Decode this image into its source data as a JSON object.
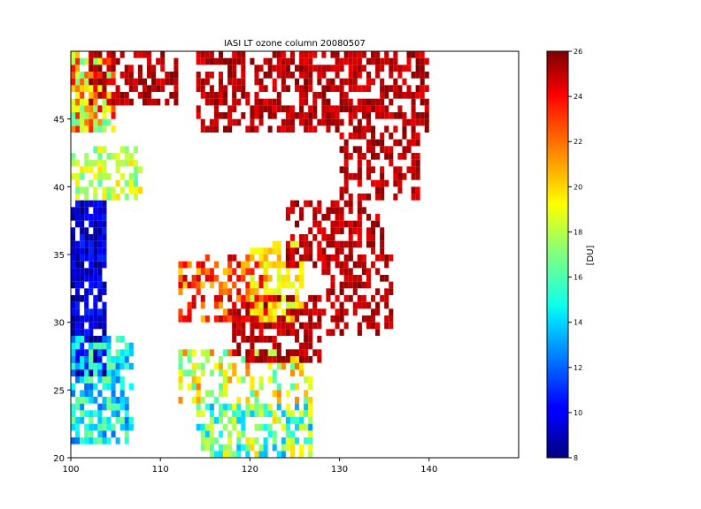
{
  "chart_data": {
    "type": "heatmap",
    "title": "IASI LT ozone column 20080507",
    "xlabel": "",
    "ylabel": "",
    "xlim": [
      100,
      150
    ],
    "ylim": [
      20,
      50
    ],
    "x_ticks": [
      "100",
      "110",
      "120",
      "130",
      "140"
    ],
    "y_ticks": [
      "20",
      "25",
      "30",
      "35",
      "40",
      "45"
    ],
    "colorbar": {
      "label": "[DU]",
      "range": [
        8,
        26
      ],
      "colormap": "jet",
      "ticks": [
        "8",
        "10",
        "12",
        "14",
        "16",
        "18",
        "20",
        "22",
        "24",
        "26"
      ]
    },
    "cell_size_deg": [
      0.5,
      0.5
    ],
    "regions": [
      {
        "lon": [
          100,
          105
        ],
        "lat": [
          44,
          50
        ],
        "value_range": [
          16,
          24
        ],
        "coverage": 0.75,
        "note": "mixed green-yellow-red swaths"
      },
      {
        "lon": [
          102,
          112
        ],
        "lat": [
          46,
          50
        ],
        "value_range": [
          24,
          26
        ],
        "coverage": 0.6
      },
      {
        "lon": [
          114,
          140
        ],
        "lat": [
          44,
          50
        ],
        "value_range": [
          24,
          26
        ],
        "coverage": 0.6
      },
      {
        "lon": [
          100,
          104
        ],
        "lat": [
          26,
          39
        ],
        "value_range": [
          8,
          11
        ],
        "coverage": 0.85
      },
      {
        "lon": [
          100,
          107
        ],
        "lat": [
          21,
          29
        ],
        "value_range": [
          12,
          17
        ],
        "coverage": 0.7
      },
      {
        "lon": [
          114,
          127
        ],
        "lat": [
          20,
          24
        ],
        "value_range": [
          13,
          20
        ],
        "coverage": 0.6
      },
      {
        "lon": [
          112,
          127
        ],
        "lat": [
          24,
          28
        ],
        "value_range": [
          16,
          22
        ],
        "coverage": 0.45
      },
      {
        "lon": [
          118,
          128
        ],
        "lat": [
          27,
          32
        ],
        "value_range": [
          24,
          26
        ],
        "coverage": 0.7
      },
      {
        "lon": [
          112,
          122
        ],
        "lat": [
          30,
          35
        ],
        "value_range": [
          20,
          25
        ],
        "coverage": 0.55
      },
      {
        "lon": [
          120,
          126
        ],
        "lat": [
          30,
          36
        ],
        "value_range": [
          18,
          21
        ],
        "coverage": 0.55
      },
      {
        "lon": [
          124,
          135
        ],
        "lat": [
          34,
          39
        ],
        "value_range": [
          24,
          26
        ],
        "coverage": 0.5
      },
      {
        "lon": [
          128,
          136
        ],
        "lat": [
          29,
          35
        ],
        "value_range": [
          24,
          26
        ],
        "coverage": 0.45
      },
      {
        "lon": [
          130,
          139
        ],
        "lat": [
          39,
          44
        ],
        "value_range": [
          24,
          26
        ],
        "coverage": 0.45
      },
      {
        "lon": [
          100,
          108
        ],
        "lat": [
          39,
          43
        ],
        "value_range": [
          16,
          20
        ],
        "coverage": 0.6
      }
    ]
  }
}
